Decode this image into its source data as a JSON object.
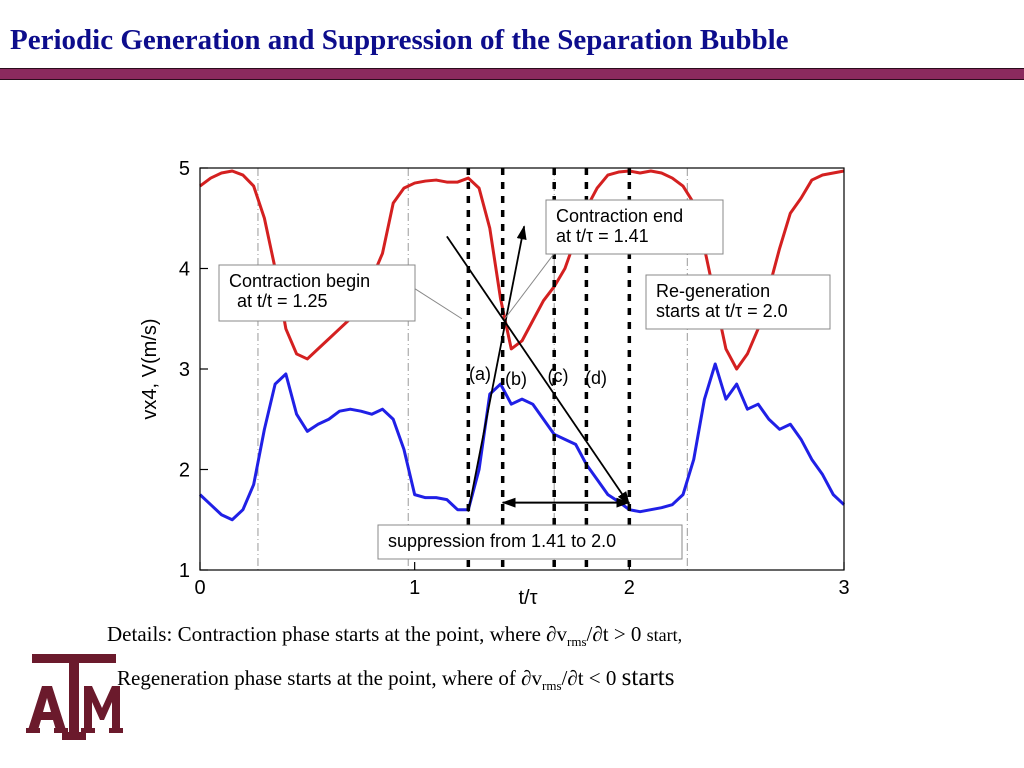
{
  "slide": {
    "title": "Periodic Generation and Suppression of the Separation Bubble"
  },
  "details": {
    "line1_prefix": "Details: Contraction phase starts at the point, where ",
    "line1_var": "∂v",
    "line1_sub": "rms",
    "line1_rest": "/∂t > 0",
    "line1_end": "start,",
    "line2_prefix": "Regeneration phase starts at the point, where of ",
    "line2_var": "∂v",
    "line2_sub": "rms",
    "line2_rest": "/∂t < 0",
    "line2_end": "starts"
  },
  "logo": {
    "text": "A|M",
    "color": "#6b1a2c"
  },
  "chart_data": {
    "type": "line",
    "xlabel": "t/τ",
    "ylabel": "vx4, V(m/s)",
    "xlim": [
      0,
      3
    ],
    "ylim": [
      1,
      5
    ],
    "xticks": [
      "0",
      "1",
      "2",
      "3"
    ],
    "yticks": [
      "1",
      "2",
      "3",
      "4",
      "5"
    ],
    "grid": false,
    "series": [
      {
        "color": "#d42020",
        "x": [
          0,
          0.05,
          0.1,
          0.15,
          0.2,
          0.25,
          0.3,
          0.35,
          0.4,
          0.45,
          0.5,
          0.55,
          0.6,
          0.65,
          0.7,
          0.75,
          0.8,
          0.85,
          0.9,
          0.95,
          1.0,
          1.05,
          1.1,
          1.15,
          1.2,
          1.25,
          1.3,
          1.35,
          1.4,
          1.45,
          1.5,
          1.55,
          1.6,
          1.65,
          1.7,
          1.75,
          1.8,
          1.85,
          1.9,
          1.95,
          2.0,
          2.05,
          2.1,
          2.15,
          2.2,
          2.25,
          2.3,
          2.35,
          2.4,
          2.45,
          2.5,
          2.55,
          2.6,
          2.65,
          2.7,
          2.75,
          2.8,
          2.85,
          2.9,
          2.95,
          3.0
        ],
        "y": [
          4.82,
          4.9,
          4.95,
          4.97,
          4.93,
          4.82,
          4.5,
          4.0,
          3.4,
          3.15,
          3.1,
          3.2,
          3.3,
          3.4,
          3.5,
          3.7,
          3.9,
          4.15,
          4.65,
          4.8,
          4.85,
          4.87,
          4.88,
          4.86,
          4.86,
          4.9,
          4.8,
          4.4,
          3.7,
          3.2,
          3.28,
          3.48,
          3.68,
          3.82,
          4.0,
          4.3,
          4.6,
          4.8,
          4.93,
          4.96,
          4.97,
          4.95,
          4.97,
          4.95,
          4.9,
          4.82,
          4.65,
          4.2,
          3.7,
          3.2,
          3.0,
          3.15,
          3.4,
          3.8,
          4.2,
          4.55,
          4.7,
          4.88,
          4.93,
          4.95,
          4.97
        ]
      },
      {
        "color": "#2020e6",
        "x": [
          0,
          0.05,
          0.1,
          0.15,
          0.2,
          0.25,
          0.3,
          0.35,
          0.4,
          0.45,
          0.5,
          0.55,
          0.6,
          0.65,
          0.7,
          0.75,
          0.8,
          0.85,
          0.9,
          0.95,
          1.0,
          1.05,
          1.1,
          1.15,
          1.2,
          1.25,
          1.3,
          1.35,
          1.4,
          1.45,
          1.5,
          1.55,
          1.6,
          1.65,
          1.7,
          1.75,
          1.8,
          1.85,
          1.9,
          1.95,
          2.0,
          2.05,
          2.1,
          2.15,
          2.2,
          2.25,
          2.3,
          2.35,
          2.4,
          2.45,
          2.5,
          2.55,
          2.6,
          2.65,
          2.7,
          2.75,
          2.8,
          2.85,
          2.9,
          2.95,
          3.0
        ],
        "y": [
          1.75,
          1.65,
          1.55,
          1.5,
          1.6,
          1.85,
          2.4,
          2.85,
          2.95,
          2.55,
          2.38,
          2.45,
          2.5,
          2.58,
          2.6,
          2.58,
          2.55,
          2.6,
          2.5,
          2.2,
          1.75,
          1.72,
          1.72,
          1.7,
          1.6,
          1.6,
          2.0,
          2.75,
          2.85,
          2.65,
          2.7,
          2.65,
          2.5,
          2.35,
          2.3,
          2.25,
          2.05,
          1.9,
          1.75,
          1.68,
          1.6,
          1.58,
          1.6,
          1.62,
          1.65,
          1.75,
          2.1,
          2.7,
          3.05,
          2.7,
          2.85,
          2.6,
          2.65,
          2.5,
          2.4,
          2.45,
          2.3,
          2.1,
          1.95,
          1.75,
          1.65
        ]
      }
    ],
    "dotted_lines_x": [
      1.25,
      1.41,
      1.65,
      1.8,
      2.0
    ],
    "dashdot_lines_x": [
      0.27,
      0.97,
      1.65,
      2.27
    ],
    "diagonal_lines": [
      {
        "x1": 1.15,
        "y1": 4.32,
        "x2": 2.0,
        "y2": 1.65,
        "arrow": true
      },
      {
        "x1": 1.25,
        "y1": 1.58,
        "x2": 1.51,
        "y2": 4.42,
        "arrow": true
      }
    ],
    "double_arrow": {
      "x1": 1.41,
      "x2": 2.0,
      "y": 1.67
    },
    "annotations": [
      {
        "text_lines": [
          "Contraction end",
          "at t/τ = 1.41"
        ],
        "pointer_from": [
          1.65,
          4.15
        ],
        "pointer_to": [
          1.42,
          3.5
        ]
      },
      {
        "text_lines": [
          "Contraction begin",
          "at t/t = 1.25"
        ],
        "pointer_from": [
          1.0,
          3.8
        ],
        "pointer_to": [
          1.22,
          3.5
        ]
      },
      {
        "text_lines": [
          "Re-generation",
          "starts at t/τ = 2.0"
        ]
      },
      {
        "text_lines": [
          "suppression from 1.41 to 2.0"
        ]
      }
    ],
    "phase_labels": [
      "(a)",
      "(b)",
      "(c)",
      "(d)"
    ]
  }
}
